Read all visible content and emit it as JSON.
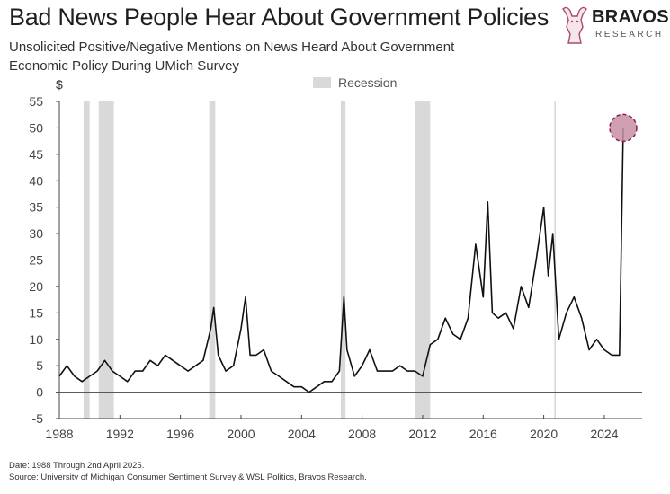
{
  "header": {
    "title": "Bad News People Hear About Government Policies",
    "subtitle": "Unsolicited Positive/Negative Mentions on News Heard About Government Economic Policy During UMich Survey"
  },
  "logo": {
    "name": "BRAVOS",
    "tagline": "RESEARCH"
  },
  "footer": {
    "date_note": "Date: 1988 Through 2nd April 2025.",
    "source_note": "Source: University of Michigan Consumer Sentiment Survey & WSL Politics, Bravos Research."
  },
  "colors": {
    "line": "#111111",
    "recession": "#d9d9d9",
    "highlight_fill": "#c98ea4",
    "highlight_stroke": "#8b1e4a",
    "axis": "#444444"
  },
  "chart_data": {
    "type": "line",
    "title": "Bad News People Hear About Government Policies",
    "ylabel": "$",
    "xlabel": "",
    "xlim": [
      1988,
      2026.5
    ],
    "ylim": [
      -5,
      55
    ],
    "yticks": [
      -5,
      0,
      5,
      10,
      15,
      20,
      25,
      30,
      35,
      40,
      45,
      50,
      55
    ],
    "xticks": [
      1988,
      1992,
      1996,
      2000,
      2004,
      2008,
      2012,
      2016,
      2020,
      2024
    ],
    "legend": {
      "label": "Recession",
      "position": "top-center"
    },
    "grid": false,
    "recessions": [
      [
        1989.6,
        1990.0
      ],
      [
        1990.6,
        1991.6
      ],
      [
        1997.9,
        1998.3
      ],
      [
        2006.6,
        2006.9
      ],
      [
        2011.5,
        2012.5
      ],
      [
        2020.7,
        2020.8
      ]
    ],
    "series": [
      {
        "x": [
          1988.0,
          1988.5,
          1989.0,
          1989.5,
          1990.0,
          1990.5,
          1991.0,
          1991.5,
          1992.0,
          1992.5,
          1993.0,
          1993.5,
          1994.0,
          1994.5,
          1995.0,
          1995.5,
          1996.0,
          1996.5,
          1997.0,
          1997.5,
          1998.0,
          1998.2,
          1998.5,
          1999.0,
          1999.5,
          2000.0,
          2000.3,
          2000.6,
          2001.0,
          2001.5,
          2002.0,
          2002.5,
          2003.0,
          2003.5,
          2004.0,
          2004.5,
          2005.0,
          2005.5,
          2006.0,
          2006.5,
          2006.8,
          2007.0,
          2007.5,
          2008.0,
          2008.5,
          2009.0,
          2009.5,
          2010.0,
          2010.5,
          2011.0,
          2011.5,
          2012.0,
          2012.5,
          2013.0,
          2013.5,
          2014.0,
          2014.5,
          2015.0,
          2015.5,
          2016.0,
          2016.3,
          2016.6,
          2017.0,
          2017.5,
          2018.0,
          2018.5,
          2019.0,
          2019.5,
          2020.0,
          2020.3,
          2020.6,
          2021.0,
          2021.5,
          2022.0,
          2022.5,
          2023.0,
          2023.5,
          2024.0,
          2024.5,
          2025.0,
          2025.25
        ],
        "values": [
          3,
          5,
          3,
          2,
          3,
          4,
          6,
          4,
          3,
          2,
          4,
          4,
          6,
          5,
          7,
          6,
          5,
          4,
          5,
          6,
          12,
          16,
          7,
          4,
          5,
          12,
          18,
          7,
          7,
          8,
          4,
          3,
          2,
          1,
          1,
          0,
          1,
          2,
          2,
          4,
          18,
          8,
          3,
          5,
          8,
          4,
          4,
          4,
          5,
          4,
          4,
          3,
          9,
          10,
          14,
          11,
          10,
          14,
          28,
          18,
          36,
          15,
          14,
          15,
          12,
          20,
          16,
          25,
          35,
          22,
          30,
          10,
          15,
          18,
          14,
          8,
          10,
          8,
          7,
          7,
          50
        ]
      }
    ],
    "highlight": {
      "x": 2025.25,
      "y": 50
    }
  }
}
